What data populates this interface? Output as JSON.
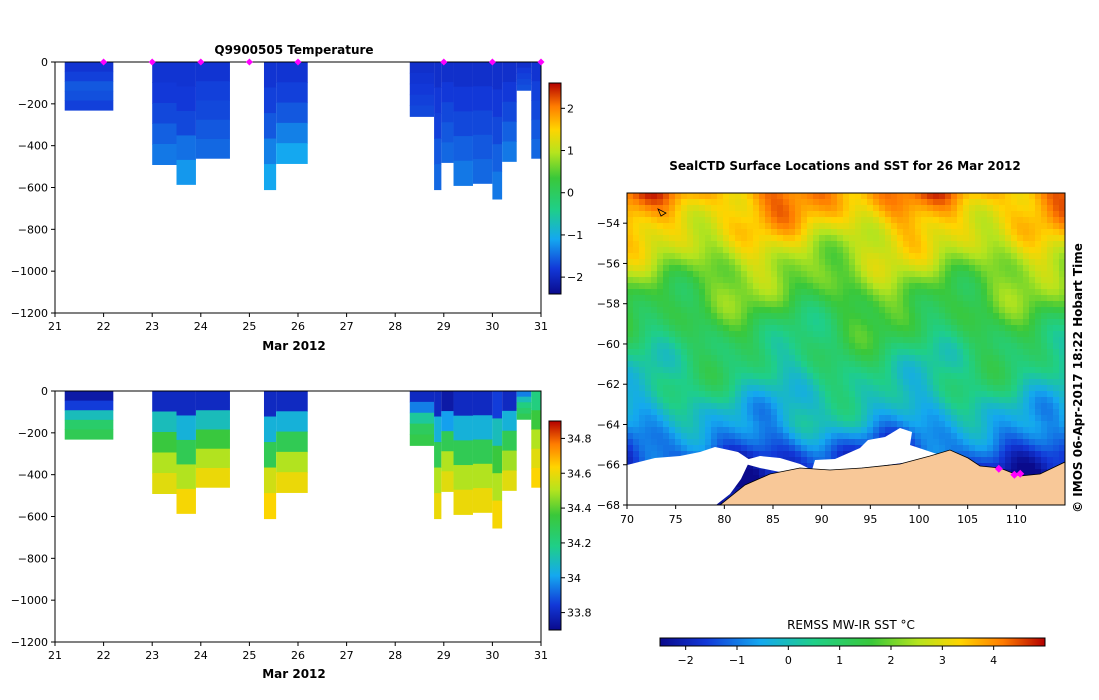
{
  "chart_data": [
    {
      "type": "heatmap",
      "title": "Q9900505  Temperature",
      "xlabel": "Mar 2012",
      "ylabel": "",
      "xlim": [
        21,
        31
      ],
      "ylim": [
        -1200,
        0
      ],
      "x_ticks": [
        21,
        22,
        23,
        24,
        25,
        26,
        27,
        28,
        29,
        30,
        31
      ],
      "y_ticks": [
        0,
        -200,
        -400,
        -600,
        -800,
        -1000,
        -1200
      ],
      "colorbar": {
        "min": -2.4,
        "max": 2.6,
        "ticks": [
          2,
          1,
          0,
          -1,
          -2
        ]
      },
      "surface_markers": [
        22,
        23,
        24,
        25,
        26,
        29,
        30,
        31
      ],
      "profiles": [
        {
          "x0": 21.2,
          "x1": 22.2,
          "depth": -230,
          "values": [
            -1.85,
            -1.75,
            -1.6,
            -1.65,
            -1.75
          ]
        },
        {
          "x0": 23.0,
          "x1": 23.5,
          "depth": -490,
          "values": [
            -1.85,
            -1.8,
            -1.7,
            -1.55,
            -1.4
          ]
        },
        {
          "x0": 23.5,
          "x1": 23.9,
          "depth": -585,
          "values": [
            -1.85,
            -1.8,
            -1.7,
            -1.45,
            -1.2
          ]
        },
        {
          "x0": 23.9,
          "x1": 24.6,
          "depth": -460,
          "values": [
            -1.85,
            -1.75,
            -1.7,
            -1.6,
            -1.5
          ]
        },
        {
          "x0": 25.3,
          "x1": 25.55,
          "depth": -610,
          "values": [
            -1.85,
            -1.75,
            -1.6,
            -1.35,
            -1.1
          ]
        },
        {
          "x0": 25.55,
          "x1": 26.2,
          "depth": -485,
          "values": [
            -1.85,
            -1.75,
            -1.6,
            -1.35,
            -1.1
          ]
        },
        {
          "x0": 28.3,
          "x1": 28.8,
          "depth": -260,
          "values": [
            -1.9,
            -1.85,
            -1.8,
            -1.75,
            -1.7
          ]
        },
        {
          "x0": 28.8,
          "x1": 28.95,
          "depth": -610,
          "values": [
            -1.9,
            -1.8,
            -1.75,
            -1.6,
            -1.5
          ]
        },
        {
          "x0": 28.95,
          "x1": 29.2,
          "depth": -480,
          "values": [
            -1.9,
            -1.8,
            -1.7,
            -1.6,
            -1.5
          ]
        },
        {
          "x0": 29.2,
          "x1": 29.6,
          "depth": -590,
          "values": [
            -1.9,
            -1.8,
            -1.7,
            -1.55,
            -1.4
          ]
        },
        {
          "x0": 29.6,
          "x1": 30.0,
          "depth": -580,
          "values": [
            -1.9,
            -1.8,
            -1.7,
            -1.6,
            -1.5
          ]
        },
        {
          "x0": 30.0,
          "x1": 30.2,
          "depth": -655,
          "values": [
            -1.9,
            -1.8,
            -1.7,
            -1.55,
            -1.4
          ]
        },
        {
          "x0": 30.2,
          "x1": 30.5,
          "depth": -475,
          "values": [
            -1.9,
            -1.8,
            -1.7,
            -1.55,
            -1.4
          ]
        },
        {
          "x0": 30.5,
          "x1": 30.8,
          "depth": -135,
          "values": [
            -1.9,
            -1.8,
            -1.75,
            -1.7,
            -1.65
          ]
        },
        {
          "x0": 30.8,
          "x1": 31.0,
          "depth": -460,
          "values": [
            -1.85,
            -1.75,
            -1.7,
            -1.6,
            -1.5
          ]
        }
      ]
    },
    {
      "type": "heatmap",
      "title": "",
      "xlabel": "Mar 2012",
      "ylabel": "",
      "xlim": [
        21,
        31
      ],
      "ylim": [
        -1200,
        0
      ],
      "x_ticks": [
        21,
        22,
        23,
        24,
        25,
        26,
        27,
        28,
        29,
        30,
        31
      ],
      "y_ticks": [
        0,
        -200,
        -400,
        -600,
        -800,
        -1000,
        -1200
      ],
      "colorbar": {
        "min": 33.7,
        "max": 34.9,
        "ticks": [
          34.8,
          34.6,
          34.4,
          34.2,
          34,
          33.8
        ]
      },
      "profiles": [
        {
          "x0": 21.2,
          "x1": 22.2,
          "depth": -230,
          "values": [
            33.75,
            33.85,
            34.1,
            34.25,
            34.3
          ]
        },
        {
          "x0": 23.0,
          "x1": 23.5,
          "depth": -490,
          "values": [
            33.8,
            34.1,
            34.35,
            34.5,
            34.58
          ]
        },
        {
          "x0": 23.5,
          "x1": 23.9,
          "depth": -585,
          "values": [
            33.8,
            34.05,
            34.3,
            34.5,
            34.62
          ]
        },
        {
          "x0": 23.9,
          "x1": 24.6,
          "depth": -460,
          "values": [
            33.8,
            34.1,
            34.35,
            34.5,
            34.6
          ]
        },
        {
          "x0": 25.3,
          "x1": 25.55,
          "depth": -610,
          "values": [
            33.8,
            34.05,
            34.3,
            34.55,
            34.63
          ]
        },
        {
          "x0": 25.55,
          "x1": 26.2,
          "depth": -485,
          "values": [
            33.8,
            34.05,
            34.3,
            34.5,
            34.6
          ]
        },
        {
          "x0": 28.3,
          "x1": 28.8,
          "depth": -260,
          "values": [
            33.8,
            33.95,
            34.15,
            34.28,
            34.32
          ]
        },
        {
          "x0": 28.8,
          "x1": 28.95,
          "depth": -610,
          "values": [
            33.8,
            34.05,
            34.3,
            34.5,
            34.6
          ]
        },
        {
          "x0": 28.95,
          "x1": 29.2,
          "depth": -480,
          "values": [
            33.75,
            34.0,
            34.3,
            34.5,
            34.58
          ]
        },
        {
          "x0": 29.2,
          "x1": 29.6,
          "depth": -590,
          "values": [
            33.8,
            34.05,
            34.3,
            34.5,
            34.6
          ]
        },
        {
          "x0": 29.6,
          "x1": 30.0,
          "depth": -580,
          "values": [
            33.8,
            34.05,
            34.3,
            34.5,
            34.6
          ]
        },
        {
          "x0": 30.0,
          "x1": 30.2,
          "depth": -655,
          "values": [
            33.85,
            34.1,
            34.35,
            34.5,
            34.62
          ]
        },
        {
          "x0": 30.2,
          "x1": 30.5,
          "depth": -475,
          "values": [
            33.8,
            34.05,
            34.3,
            34.48,
            34.58
          ]
        },
        {
          "x0": 30.5,
          "x1": 30.8,
          "depth": -135,
          "values": [
            33.95,
            34.1,
            34.2,
            34.25,
            34.3
          ]
        },
        {
          "x0": 30.8,
          "x1": 31.0,
          "depth": -460,
          "values": [
            34.2,
            34.35,
            34.5,
            34.58,
            34.63
          ]
        }
      ]
    },
    {
      "type": "heatmap",
      "title": "SealCTD Surface Locations and SST for 26 Mar 2012",
      "xlabel": "",
      "ylabel": "",
      "xlim": [
        70,
        115
      ],
      "ylim": [
        -68,
        -52.5
      ],
      "x_ticks": [
        70,
        75,
        80,
        85,
        90,
        95,
        100,
        105,
        110
      ],
      "y_ticks": [
        -54,
        -56,
        -58,
        -60,
        -62,
        -64,
        -66,
        -68
      ],
      "colorbar": {
        "label": "REMSS MW-IR SST °C",
        "min": -2.5,
        "max": 5,
        "ticks": [
          -2,
          -1,
          0,
          1,
          2,
          3,
          4
        ]
      },
      "sst_latitude_profile": [
        {
          "lat": -52.5,
          "sst": 4.0
        },
        {
          "lat": -54.0,
          "sst": 3.3
        },
        {
          "lat": -56.0,
          "sst": 2.4
        },
        {
          "lat": -58.0,
          "sst": 1.6
        },
        {
          "lat": -60.0,
          "sst": 0.9
        },
        {
          "lat": -62.0,
          "sst": 0.35
        },
        {
          "lat": -64.0,
          "sst": -0.4
        },
        {
          "lat": -65.5,
          "sst": -1.5
        },
        {
          "lat": -66.5,
          "sst": -1.9
        }
      ],
      "seal_locations": [
        {
          "lon": 108.2,
          "lat": -66.2
        },
        {
          "lon": 109.8,
          "lat": -66.5
        },
        {
          "lon": 110.4,
          "lat": -66.45
        }
      ],
      "annotation": "© IMOS 06-Apr-2017 18:22 Hobart Time"
    }
  ]
}
